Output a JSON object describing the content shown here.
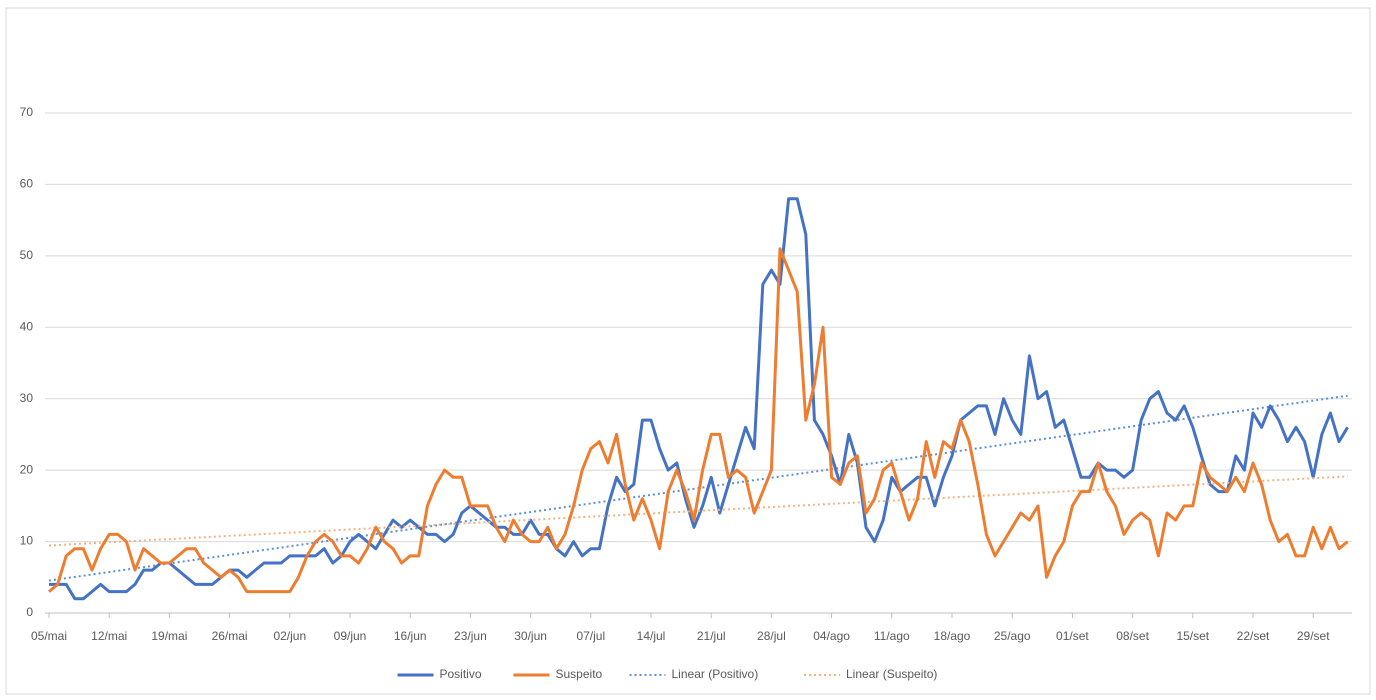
{
  "chart_data": {
    "type": "line",
    "categories": [
      "05/mai",
      null,
      null,
      null,
      null,
      null,
      null,
      "12/mai",
      null,
      null,
      null,
      null,
      null,
      null,
      "19/mai",
      null,
      null,
      null,
      null,
      null,
      null,
      "26/mai",
      null,
      null,
      null,
      null,
      null,
      null,
      "02/jun",
      null,
      null,
      null,
      null,
      null,
      null,
      "09/jun",
      null,
      null,
      null,
      null,
      null,
      null,
      "16/jun",
      null,
      null,
      null,
      null,
      null,
      null,
      "23/jun",
      null,
      null,
      null,
      null,
      null,
      null,
      "30/jun",
      null,
      null,
      null,
      null,
      null,
      null,
      "07/jul",
      null,
      null,
      null,
      null,
      null,
      null,
      "14/jul",
      null,
      null,
      null,
      null,
      null,
      null,
      "21/jul",
      null,
      null,
      null,
      null,
      null,
      null,
      "28/jul",
      null,
      null,
      null,
      null,
      null,
      null,
      "04/ago",
      null,
      null,
      null,
      null,
      null,
      null,
      "11/ago",
      null,
      null,
      null,
      null,
      null,
      null,
      "18/ago",
      null,
      null,
      null,
      null,
      null,
      null,
      "25/ago",
      null,
      null,
      null,
      null,
      null,
      null,
      "01/set",
      null,
      null,
      null,
      null,
      null,
      null,
      "08/set",
      null,
      null,
      null,
      null,
      null,
      null,
      "15/set",
      null,
      null,
      null,
      null,
      null,
      null,
      "22/set",
      null,
      null,
      null,
      null,
      null,
      null,
      "29/set",
      null,
      null,
      null,
      null
    ],
    "series": [
      {
        "name": "Positivo",
        "color": "#4472c4",
        "values": [
          4,
          4,
          4,
          2,
          2,
          3,
          4,
          3,
          3,
          3,
          4,
          6,
          6,
          7,
          7,
          6,
          5,
          4,
          4,
          4,
          5,
          6,
          6,
          5,
          6,
          7,
          7,
          7,
          8,
          8,
          8,
          8,
          9,
          7,
          8,
          10,
          11,
          10,
          9,
          11,
          13,
          12,
          13,
          12,
          11,
          11,
          10,
          11,
          14,
          15,
          14,
          13,
          12,
          12,
          11,
          11,
          13,
          11,
          11,
          9,
          8,
          10,
          8,
          9,
          9,
          15,
          19,
          17,
          18,
          27,
          27,
          23,
          20,
          21,
          16,
          12,
          15,
          19,
          14,
          18,
          22,
          26,
          23,
          46,
          48,
          46,
          58,
          58,
          53,
          27,
          25,
          22,
          18,
          25,
          21,
          12,
          10,
          13,
          19,
          17,
          18,
          19,
          19,
          15,
          19,
          22,
          27,
          28,
          29,
          29,
          25,
          30,
          27,
          25,
          36,
          30,
          31,
          26,
          27,
          23,
          19,
          19,
          21,
          20,
          20,
          19,
          20,
          27,
          30,
          31,
          28,
          27,
          29,
          26,
          22,
          18,
          17,
          17,
          22,
          20,
          28,
          26,
          29,
          27,
          24,
          26,
          24,
          19,
          25,
          28,
          24,
          26
        ],
        "trendline": {
          "name": "Linear (Positivo)",
          "color": "#5b8fd6"
        }
      },
      {
        "name": "Suspeito",
        "color": "#ed7d31",
        "values": [
          3,
          4,
          8,
          9,
          9,
          6,
          9,
          11,
          11,
          10,
          6,
          9,
          8,
          7,
          7,
          8,
          9,
          9,
          7,
          6,
          5,
          6,
          5,
          3,
          3,
          3,
          3,
          3,
          3,
          5,
          8,
          10,
          11,
          10,
          8,
          8,
          7,
          9,
          12,
          10,
          9,
          7,
          8,
          8,
          15,
          18,
          20,
          19,
          19,
          15,
          15,
          15,
          12,
          10,
          13,
          11,
          10,
          10,
          12,
          9,
          11,
          15,
          20,
          23,
          24,
          21,
          25,
          18,
          13,
          16,
          13,
          9,
          17,
          20,
          17,
          13,
          20,
          25,
          25,
          19,
          20,
          19,
          14,
          17,
          20,
          51,
          48,
          45,
          27,
          32,
          40,
          19,
          18,
          21,
          22,
          14,
          16,
          20,
          21,
          17,
          13,
          16,
          24,
          19,
          24,
          23,
          27,
          24,
          18,
          11,
          8,
          10,
          12,
          14,
          13,
          15,
          5,
          8,
          10,
          15,
          17,
          17,
          21,
          17,
          15,
          11,
          13,
          14,
          13,
          8,
          14,
          13,
          15,
          15,
          21,
          19,
          18,
          17,
          19,
          17,
          21,
          18,
          13,
          10,
          11,
          8,
          8,
          12,
          9,
          12,
          9,
          10
        ],
        "trendline": {
          "name": "Linear (Suspeito)",
          "color": "#f4b183"
        }
      }
    ],
    "ylim": [
      0,
      70
    ],
    "yticks": [
      0,
      10,
      20,
      30,
      40,
      50,
      60,
      70
    ],
    "grid": true,
    "legend": "bottom"
  }
}
